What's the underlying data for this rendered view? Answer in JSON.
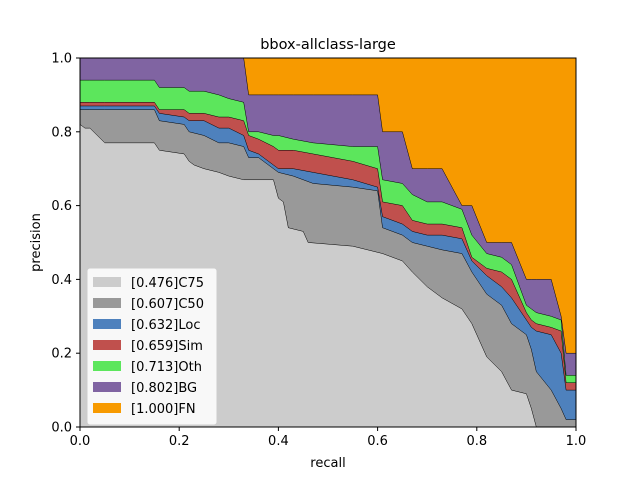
{
  "chart_data": {
    "type": "area",
    "title": "bbox-allclass-large",
    "xlabel": "recall",
    "ylabel": "precision",
    "xlim": [
      0,
      1
    ],
    "ylim": [
      0,
      1
    ],
    "xticks": [
      "0.0",
      "0.2",
      "0.4",
      "0.6",
      "0.8",
      "1.0"
    ],
    "yticks": [
      "0.0",
      "0.2",
      "0.4",
      "0.6",
      "0.8",
      "1.0"
    ],
    "legend_position": "lower-left",
    "series": [
      {
        "name": "[0.476]C75",
        "color": "#cccccc",
        "points": [
          [
            0,
            0.82
          ],
          [
            0.01,
            0.81
          ],
          [
            0.02,
            0.81
          ],
          [
            0.05,
            0.77
          ],
          [
            0.15,
            0.77
          ],
          [
            0.16,
            0.75
          ],
          [
            0.21,
            0.74
          ],
          [
            0.22,
            0.72
          ],
          [
            0.23,
            0.71
          ],
          [
            0.25,
            0.7
          ],
          [
            0.28,
            0.69
          ],
          [
            0.3,
            0.68
          ],
          [
            0.33,
            0.67
          ],
          [
            0.39,
            0.67
          ],
          [
            0.4,
            0.62
          ],
          [
            0.41,
            0.61
          ],
          [
            0.42,
            0.54
          ],
          [
            0.45,
            0.53
          ],
          [
            0.46,
            0.5
          ],
          [
            0.55,
            0.49
          ],
          [
            0.58,
            0.48
          ],
          [
            0.61,
            0.47
          ],
          [
            0.65,
            0.45
          ],
          [
            0.67,
            0.42
          ],
          [
            0.7,
            0.38
          ],
          [
            0.73,
            0.35
          ],
          [
            0.77,
            0.32
          ],
          [
            0.79,
            0.28
          ],
          [
            0.82,
            0.19
          ],
          [
            0.85,
            0.15
          ],
          [
            0.87,
            0.1
          ],
          [
            0.9,
            0.09
          ],
          [
            0.91,
            0.05
          ],
          [
            0.92,
            0.0
          ],
          [
            1.0,
            0.0
          ]
        ]
      },
      {
        "name": "[0.607]C50",
        "color": "#999999",
        "points": [
          [
            0,
            0.86
          ],
          [
            0.01,
            0.86
          ],
          [
            0.02,
            0.86
          ],
          [
            0.05,
            0.86
          ],
          [
            0.15,
            0.86
          ],
          [
            0.16,
            0.83
          ],
          [
            0.21,
            0.82
          ],
          [
            0.22,
            0.8
          ],
          [
            0.25,
            0.79
          ],
          [
            0.28,
            0.77
          ],
          [
            0.3,
            0.77
          ],
          [
            0.33,
            0.76
          ],
          [
            0.34,
            0.73
          ],
          [
            0.36,
            0.73
          ],
          [
            0.39,
            0.7
          ],
          [
            0.4,
            0.69
          ],
          [
            0.43,
            0.68
          ],
          [
            0.47,
            0.66
          ],
          [
            0.55,
            0.65
          ],
          [
            0.6,
            0.64
          ],
          [
            0.61,
            0.54
          ],
          [
            0.65,
            0.52
          ],
          [
            0.67,
            0.5
          ],
          [
            0.7,
            0.49
          ],
          [
            0.73,
            0.48
          ],
          [
            0.77,
            0.47
          ],
          [
            0.79,
            0.42
          ],
          [
            0.82,
            0.36
          ],
          [
            0.85,
            0.33
          ],
          [
            0.87,
            0.28
          ],
          [
            0.9,
            0.25
          ],
          [
            0.91,
            0.21
          ],
          [
            0.92,
            0.15
          ],
          [
            0.95,
            0.1
          ],
          [
            0.97,
            0.05
          ],
          [
            0.98,
            0.02
          ],
          [
            1.0,
            0.02
          ]
        ]
      },
      {
        "name": "[0.632]Loc",
        "color": "#4e81bd",
        "points": [
          [
            0,
            0.87
          ],
          [
            0.01,
            0.87
          ],
          [
            0.02,
            0.87
          ],
          [
            0.05,
            0.87
          ],
          [
            0.15,
            0.87
          ],
          [
            0.16,
            0.85
          ],
          [
            0.21,
            0.84
          ],
          [
            0.22,
            0.83
          ],
          [
            0.25,
            0.83
          ],
          [
            0.28,
            0.81
          ],
          [
            0.3,
            0.81
          ],
          [
            0.33,
            0.79
          ],
          [
            0.34,
            0.75
          ],
          [
            0.36,
            0.74
          ],
          [
            0.39,
            0.71
          ],
          [
            0.4,
            0.7
          ],
          [
            0.43,
            0.7
          ],
          [
            0.47,
            0.69
          ],
          [
            0.55,
            0.67
          ],
          [
            0.6,
            0.65
          ],
          [
            0.61,
            0.57
          ],
          [
            0.65,
            0.55
          ],
          [
            0.67,
            0.53
          ],
          [
            0.7,
            0.52
          ],
          [
            0.73,
            0.52
          ],
          [
            0.77,
            0.51
          ],
          [
            0.79,
            0.45
          ],
          [
            0.82,
            0.41
          ],
          [
            0.85,
            0.38
          ],
          [
            0.87,
            0.35
          ],
          [
            0.9,
            0.29
          ],
          [
            0.91,
            0.27
          ],
          [
            0.92,
            0.26
          ],
          [
            0.95,
            0.25
          ],
          [
            0.97,
            0.2
          ],
          [
            0.98,
            0.1
          ],
          [
            1.0,
            0.1
          ]
        ]
      },
      {
        "name": "[0.659]Sim",
        "color": "#c0504d",
        "points": [
          [
            0,
            0.88
          ],
          [
            0.01,
            0.88
          ],
          [
            0.02,
            0.88
          ],
          [
            0.05,
            0.88
          ],
          [
            0.15,
            0.88
          ],
          [
            0.16,
            0.86
          ],
          [
            0.21,
            0.86
          ],
          [
            0.22,
            0.85
          ],
          [
            0.25,
            0.85
          ],
          [
            0.28,
            0.84
          ],
          [
            0.3,
            0.84
          ],
          [
            0.33,
            0.83
          ],
          [
            0.34,
            0.79
          ],
          [
            0.36,
            0.78
          ],
          [
            0.39,
            0.76
          ],
          [
            0.4,
            0.75
          ],
          [
            0.43,
            0.75
          ],
          [
            0.47,
            0.74
          ],
          [
            0.55,
            0.72
          ],
          [
            0.6,
            0.7
          ],
          [
            0.61,
            0.61
          ],
          [
            0.65,
            0.6
          ],
          [
            0.67,
            0.56
          ],
          [
            0.7,
            0.55
          ],
          [
            0.73,
            0.55
          ],
          [
            0.77,
            0.54
          ],
          [
            0.79,
            0.46
          ],
          [
            0.82,
            0.43
          ],
          [
            0.85,
            0.42
          ],
          [
            0.87,
            0.4
          ],
          [
            0.9,
            0.31
          ],
          [
            0.91,
            0.29
          ],
          [
            0.92,
            0.28
          ],
          [
            0.95,
            0.27
          ],
          [
            0.97,
            0.26
          ],
          [
            0.98,
            0.12
          ],
          [
            1.0,
            0.12
          ]
        ]
      },
      {
        "name": "[0.713]Oth",
        "color": "#5ce65c",
        "points": [
          [
            0,
            0.94
          ],
          [
            0.01,
            0.94
          ],
          [
            0.02,
            0.94
          ],
          [
            0.05,
            0.94
          ],
          [
            0.15,
            0.94
          ],
          [
            0.16,
            0.92
          ],
          [
            0.21,
            0.92
          ],
          [
            0.22,
            0.91
          ],
          [
            0.25,
            0.91
          ],
          [
            0.28,
            0.9
          ],
          [
            0.3,
            0.89
          ],
          [
            0.33,
            0.88
          ],
          [
            0.34,
            0.8
          ],
          [
            0.36,
            0.8
          ],
          [
            0.39,
            0.79
          ],
          [
            0.4,
            0.79
          ],
          [
            0.43,
            0.78
          ],
          [
            0.47,
            0.77
          ],
          [
            0.55,
            0.76
          ],
          [
            0.6,
            0.76
          ],
          [
            0.61,
            0.67
          ],
          [
            0.65,
            0.66
          ],
          [
            0.67,
            0.63
          ],
          [
            0.7,
            0.61
          ],
          [
            0.73,
            0.61
          ],
          [
            0.77,
            0.59
          ],
          [
            0.79,
            0.52
          ],
          [
            0.82,
            0.47
          ],
          [
            0.85,
            0.46
          ],
          [
            0.87,
            0.44
          ],
          [
            0.9,
            0.33
          ],
          [
            0.91,
            0.32
          ],
          [
            0.92,
            0.31
          ],
          [
            0.95,
            0.3
          ],
          [
            0.97,
            0.29
          ],
          [
            0.98,
            0.14
          ],
          [
            1.0,
            0.14
          ]
        ]
      },
      {
        "name": "[0.802]BG",
        "color": "#8064a2",
        "points": [
          [
            0,
            1.0
          ],
          [
            0.01,
            1.0
          ],
          [
            0.02,
            1.0
          ],
          [
            0.05,
            1.0
          ],
          [
            0.15,
            1.0
          ],
          [
            0.16,
            1.0
          ],
          [
            0.21,
            1.0
          ],
          [
            0.22,
            1.0
          ],
          [
            0.25,
            1.0
          ],
          [
            0.28,
            1.0
          ],
          [
            0.3,
            1.0
          ],
          [
            0.33,
            1.0
          ],
          [
            0.34,
            0.9
          ],
          [
            0.36,
            0.9
          ],
          [
            0.39,
            0.9
          ],
          [
            0.4,
            0.9
          ],
          [
            0.43,
            0.9
          ],
          [
            0.47,
            0.9
          ],
          [
            0.55,
            0.9
          ],
          [
            0.6,
            0.9
          ],
          [
            0.61,
            0.8
          ],
          [
            0.65,
            0.8
          ],
          [
            0.67,
            0.7
          ],
          [
            0.7,
            0.7
          ],
          [
            0.73,
            0.7
          ],
          [
            0.77,
            0.6
          ],
          [
            0.79,
            0.6
          ],
          [
            0.82,
            0.5
          ],
          [
            0.85,
            0.5
          ],
          [
            0.87,
            0.5
          ],
          [
            0.9,
            0.4
          ],
          [
            0.91,
            0.4
          ],
          [
            0.92,
            0.4
          ],
          [
            0.95,
            0.4
          ],
          [
            0.97,
            0.3
          ],
          [
            0.98,
            0.2
          ],
          [
            1.0,
            0.2
          ]
        ]
      },
      {
        "name": "[1.000]FN",
        "color": "#f79a00",
        "points": [
          [
            0,
            1.0
          ],
          [
            1.0,
            1.0
          ]
        ]
      }
    ]
  }
}
